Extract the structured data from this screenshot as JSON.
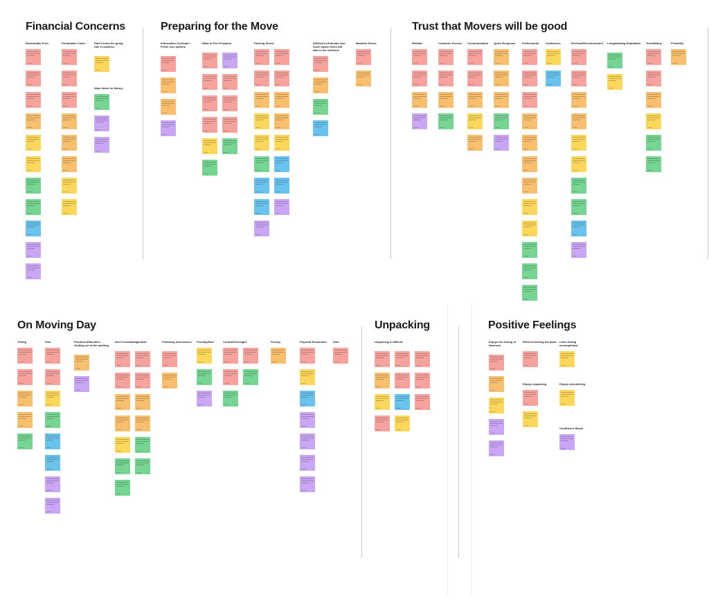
{
  "colors": {
    "pink": "#f6a39e",
    "orange": "#f8bf6e",
    "yellow": "#fbd75c",
    "green": "#76d592",
    "blue": "#69c3ec",
    "purple": "#c9a7f4"
  },
  "sections": [
    {
      "id": "financial",
      "title": "Financial Concerns",
      "columns": [
        {
          "label": "Reasonable Price",
          "notes": [
            "pink",
            "pink",
            "pink",
            "orange",
            "yellow",
            "yellow",
            "green",
            "green",
            "blue",
            "purple",
            "purple"
          ]
        },
        {
          "label": "Predictable Costs",
          "notes": [
            "pink",
            "pink",
            "pink",
            "orange",
            "orange",
            "orange",
            "yellow",
            "yellow"
          ]
        },
        {
          "label": "Didn't know the going rate in advance",
          "notes": [
            "yellow"
          ]
        },
        {
          "label": "Want Value for Money",
          "notes": [
            "green",
            "purple",
            "purple"
          ]
        }
      ]
    },
    {
      "id": "preparing",
      "title": "Preparing for the Move",
      "columns": [
        {
          "label": "Information Overload / Prefer less options",
          "notes": [
            "pink",
            "orange",
            "orange",
            "purple"
          ]
        },
        {
          "label": "Want to Feel Prepared",
          "notes": [
            "pink",
            "pink",
            "pink",
            "pink",
            "yellow",
            "green",
            "purple",
            "pink",
            "pink",
            "pink",
            "green"
          ]
        },
        {
          "label": "Packing Stress",
          "notes": [
            "pink",
            "pink",
            "orange",
            "yellow",
            "yellow",
            "green",
            "blue",
            "blue",
            "purple",
            "pink",
            "pink",
            "orange",
            "orange",
            "yellow",
            "blue",
            "blue",
            "purple"
          ]
        },
        {
          "label": "Difficult to Estimate how much space items will take in the car/truck",
          "notes": [
            "pink",
            "orange",
            "green",
            "blue"
          ]
        },
        {
          "label": "Manifest Stress",
          "notes": [
            "pink",
            "orange"
          ]
        }
      ]
    },
    {
      "id": "trust",
      "title": "Trust that Movers will be good",
      "columns": [
        {
          "label": "Reliable",
          "notes": [
            "pink",
            "pink",
            "orange",
            "purple"
          ]
        },
        {
          "label": "Customer Service",
          "notes": [
            "pink",
            "pink",
            "orange",
            "green"
          ]
        },
        {
          "label": "Communication",
          "notes": [
            "pink",
            "pink",
            "orange",
            "yellow",
            "orange"
          ]
        },
        {
          "label": "Quick Response",
          "notes": [
            "orange",
            "orange",
            "orange",
            "green",
            "purple"
          ]
        },
        {
          "label": "Professional",
          "notes": [
            "pink",
            "pink",
            "pink",
            "orange",
            "orange",
            "orange",
            "orange",
            "yellow",
            "yellow",
            "green",
            "green",
            "green"
          ]
        },
        {
          "label": "Confidence",
          "notes": [
            "yellow",
            "blue"
          ]
        },
        {
          "label": "Reviews/Recommended",
          "notes": [
            "pink",
            "pink",
            "orange",
            "orange",
            "yellow",
            "yellow",
            "green",
            "green",
            "blue",
            "purple"
          ]
        },
        {
          "label": "Longstanding Reputation",
          "notes": [
            "green",
            "yellow"
          ]
        },
        {
          "label": "Trust/Safety",
          "notes": [
            "pink",
            "pink",
            "orange",
            "yellow",
            "green",
            "green"
          ]
        },
        {
          "label": "Flexibility",
          "notes": [
            "orange"
          ]
        }
      ]
    },
    {
      "id": "moving",
      "title": "On Moving Day",
      "columns": [
        {
          "label": "Timing",
          "notes": [
            "pink",
            "pink",
            "orange",
            "orange",
            "green"
          ]
        },
        {
          "label": "Fast",
          "notes": [
            "pink",
            "pink",
            "yellow",
            "green",
            "blue",
            "blue",
            "purple",
            "purple"
          ]
        },
        {
          "label": "Practical difficulties Getting out of the building",
          "notes": [
            "orange",
            "purple"
          ]
        },
        {
          "label": "Don't lose/damage/steal",
          "notes": [
            "pink",
            "pink",
            "orange",
            "orange",
            "yellow",
            "green",
            "green",
            "pink",
            "pink",
            "orange",
            "orange",
            "green",
            "green"
          ]
        },
        {
          "label": "Following Instructions",
          "notes": [
            "pink",
            "orange"
          ]
        },
        {
          "label": "Friendly/Nice",
          "notes": [
            "yellow",
            "green",
            "purple"
          ]
        },
        {
          "label": "Control/Oversight",
          "notes": [
            "pink",
            "pink",
            "green",
            "pink",
            "green"
          ]
        },
        {
          "label": "Privacy",
          "notes": [
            "orange"
          ]
        },
        {
          "label": "Physical Exhaustion",
          "notes": [
            "pink",
            "yellow",
            "blue",
            "purple",
            "purple",
            "purple",
            "purple"
          ]
        },
        {
          "label": "Kids",
          "notes": [
            "pink"
          ]
        }
      ]
    },
    {
      "id": "unpacking",
      "title": "Unpacking",
      "columns": [
        {
          "label": "Unpacking is difficult",
          "notes": [
            "pink",
            "pink",
            "pink",
            "orange",
            "pink",
            "pink",
            "yellow",
            "blue",
            "pink",
            "pink",
            "yellow"
          ]
        }
      ]
    },
    {
      "id": "positive",
      "title": "Positive Feelings",
      "columns": [
        {
          "label": "Enjoys the feeling of Newness",
          "notes": [
            "pink",
            "orange",
            "yellow",
            "purple",
            "purple"
          ]
        },
        {
          "label": "Relief of leaving old place",
          "notes": [
            "pink"
          ]
        },
        {
          "label": "Likes feeling accomplished",
          "notes": [
            "yellow"
          ]
        },
        {
          "label": "Enjoys organizing",
          "notes": [
            "pink",
            "yellow"
          ]
        },
        {
          "label": "Enjoys decluttering",
          "notes": [
            "yellow"
          ]
        },
        {
          "label": "Confidence Boost",
          "notes": [
            "purple"
          ]
        }
      ]
    }
  ],
  "corner_label": "····"
}
